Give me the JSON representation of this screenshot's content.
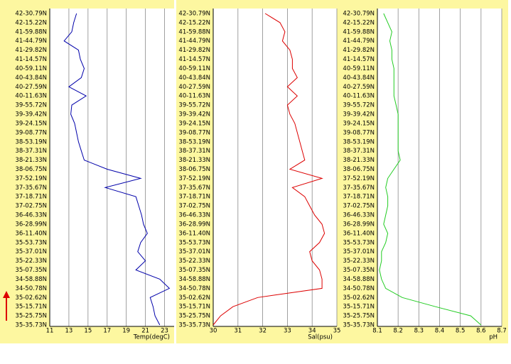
{
  "chart_data": [
    {
      "type": "line",
      "xlabel": "Temp(degC)",
      "categories": [
        "42-30.79N",
        "42-15.22N",
        "41-59.88N",
        "41-44.79N",
        "41-29.82N",
        "41-14.57N",
        "40-59.11N",
        "40-43.84N",
        "40-27.59N",
        "40-11.63N",
        "39-55.72N",
        "39-39.42N",
        "39-24.15N",
        "39-08.77N",
        "38-53.19N",
        "38-37.31N",
        "38-21.33N",
        "38-06.75N",
        "37-52.19N",
        "37-35.67N",
        "37-18.71N",
        "37-02.75N",
        "36-46.33N",
        "36-28.99N",
        "36-11.40N",
        "35-53.73N",
        "35-37.01N",
        "35-22.33N",
        "35-07.35N",
        "34-58.88N",
        "34-50.78N",
        "35-02.62N",
        "35-15.71N",
        "35-25.75N",
        "35-35.73N"
      ],
      "values": [
        13.8,
        13.5,
        13.3,
        12.5,
        14.0,
        14.2,
        14.6,
        14.3,
        13.0,
        14.8,
        13.3,
        13.2,
        13.6,
        13.8,
        14.0,
        14.3,
        14.6,
        17.0,
        20.5,
        16.8,
        20.0,
        20.3,
        20.6,
        20.8,
        21.2,
        20.5,
        20.2,
        21.0,
        20.0,
        22.5,
        23.5,
        21.5,
        21.8,
        22.0,
        22.5
      ],
      "color": "#0000aa",
      "xlim": [
        11,
        24
      ],
      "xticks": [
        11,
        13,
        15,
        17,
        19,
        21,
        23
      ],
      "grid": true
    },
    {
      "type": "line",
      "xlabel": "Sal(psu)",
      "categories": [
        "42-30.79N",
        "42-15.22N",
        "41-59.88N",
        "41-44.79N",
        "41-29.82N",
        "41-14.57N",
        "40-59.11N",
        "40-43.84N",
        "40-27.59N",
        "40-11.63N",
        "39-55.72N",
        "39-39.42N",
        "39-24.15N",
        "39-08.77N",
        "38-53.19N",
        "38-37.31N",
        "38-21.33N",
        "38-06.75N",
        "37-52.19N",
        "37-35.67N",
        "37-18.71N",
        "37-02.75N",
        "36-46.33N",
        "36-28.99N",
        "36-11.40N",
        "35-53.73N",
        "35-37.01N",
        "35-22.33N",
        "35-07.35N",
        "34-58.88N",
        "34-50.78N",
        "35-02.62N",
        "35-15.71N",
        "35-25.75N",
        "35-35.73N"
      ],
      "values": [
        32.1,
        32.7,
        32.9,
        32.8,
        33.1,
        33.2,
        33.2,
        33.4,
        33.0,
        33.4,
        33.0,
        33.1,
        33.3,
        33.4,
        33.5,
        33.6,
        33.7,
        33.1,
        34.4,
        33.2,
        33.7,
        33.9,
        34.1,
        34.4,
        34.5,
        34.3,
        33.9,
        34.0,
        34.3,
        34.4,
        34.4,
        31.8,
        30.8,
        30.3,
        30.0
      ],
      "color": "#dd0000",
      "xlim": [
        30,
        35
      ],
      "xticks": [
        30,
        31,
        32,
        33,
        34,
        35
      ],
      "grid": true
    },
    {
      "type": "line",
      "xlabel": "pH",
      "categories": [
        "42-30.79N",
        "42-15.22N",
        "41-59.88N",
        "41-44.79N",
        "41-29.82N",
        "41-14.57N",
        "40-59.11N",
        "40-43.84N",
        "40-27.59N",
        "40-11.63N",
        "39-55.72N",
        "39-39.42N",
        "39-24.15N",
        "39-08.77N",
        "38-53.19N",
        "38-37.31N",
        "38-21.33N",
        "38-06.75N",
        "37-52.19N",
        "37-35.67N",
        "37-18.71N",
        "37-02.75N",
        "36-46.33N",
        "36-28.99N",
        "36-11.40N",
        "35-53.73N",
        "35-37.01N",
        "35-22.33N",
        "35-07.35N",
        "34-58.88N",
        "34-50.78N",
        "35-02.62N",
        "35-15.71N",
        "35-25.75N",
        "35-35.73N"
      ],
      "values": [
        8.13,
        8.15,
        8.17,
        8.16,
        8.17,
        8.17,
        8.18,
        8.18,
        8.18,
        8.18,
        8.19,
        8.2,
        8.2,
        8.2,
        8.2,
        8.2,
        8.21,
        8.18,
        8.15,
        8.14,
        8.15,
        8.15,
        8.14,
        8.13,
        8.15,
        8.14,
        8.12,
        8.12,
        8.11,
        8.12,
        8.14,
        8.22,
        8.38,
        8.55,
        8.6
      ],
      "color": "#22cc22",
      "xlim": [
        8.1,
        8.7
      ],
      "xticks": [
        8.1,
        8.2,
        8.3,
        8.4,
        8.5,
        8.6,
        8.7
      ],
      "grid": true
    }
  ]
}
